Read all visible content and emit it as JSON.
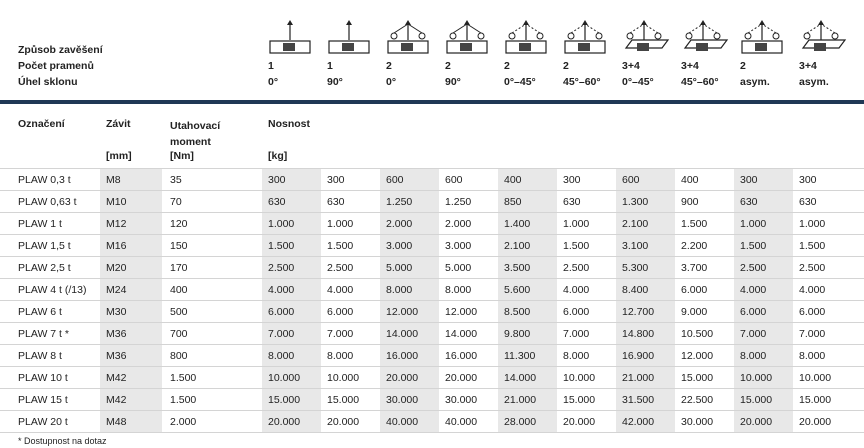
{
  "header": {
    "labels": [
      "Způsob zavěšení",
      "Počet pramenů",
      "Úhel sklonu"
    ],
    "columns": [
      {
        "count": "1",
        "angle": "0°"
      },
      {
        "count": "1",
        "angle": "90°"
      },
      {
        "count": "2",
        "angle": "0°"
      },
      {
        "count": "2",
        "angle": "90°"
      },
      {
        "count": "2",
        "angle": "0°–45°"
      },
      {
        "count": "2",
        "angle": "45°–60°"
      },
      {
        "count": "3+4",
        "angle": "0°–45°"
      },
      {
        "count": "3+4",
        "angle": "45°–60°"
      },
      {
        "count": "2",
        "angle": "asym."
      },
      {
        "count": "3+4",
        "angle": "asym."
      }
    ]
  },
  "table": {
    "headers": {
      "name": "Označení",
      "thread": "Závit",
      "torque": "Utahovací moment",
      "load": "Nosnost"
    },
    "units": {
      "thread": "[mm]",
      "torque": "[Nm]",
      "load": "[kg]"
    },
    "rows": [
      [
        "PLAW 0,3 t",
        "M8",
        "35",
        "300",
        "300",
        "600",
        "600",
        "400",
        "300",
        "600",
        "400",
        "300",
        "300"
      ],
      [
        "PLAW 0,63 t",
        "M10",
        "70",
        "630",
        "630",
        "1.250",
        "1.250",
        "850",
        "630",
        "1.300",
        "900",
        "630",
        "630"
      ],
      [
        "PLAW 1 t",
        "M12",
        "120",
        "1.000",
        "1.000",
        "2.000",
        "2.000",
        "1.400",
        "1.000",
        "2.100",
        "1.500",
        "1.000",
        "1.000"
      ],
      [
        "PLAW 1,5 t",
        "M16",
        "150",
        "1.500",
        "1.500",
        "3.000",
        "3.000",
        "2.100",
        "1.500",
        "3.100",
        "2.200",
        "1.500",
        "1.500"
      ],
      [
        "PLAW 2,5 t",
        "M20",
        "170",
        "2.500",
        "2.500",
        "5.000",
        "5.000",
        "3.500",
        "2.500",
        "5.300",
        "3.700",
        "2.500",
        "2.500"
      ],
      [
        "PLAW 4 t (/13)",
        "M24",
        "400",
        "4.000",
        "4.000",
        "8.000",
        "8.000",
        "5.600",
        "4.000",
        "8.400",
        "6.000",
        "4.000",
        "4.000"
      ],
      [
        "PLAW 6 t",
        "M30",
        "500",
        "6.000",
        "6.000",
        "12.000",
        "12.000",
        "8.500",
        "6.000",
        "12.700",
        "9.000",
        "6.000",
        "6.000"
      ],
      [
        "PLAW 7 t *",
        "M36",
        "700",
        "7.000",
        "7.000",
        "14.000",
        "14.000",
        "9.800",
        "7.000",
        "14.800",
        "10.500",
        "7.000",
        "7.000"
      ],
      [
        "PLAW 8 t",
        "M36",
        "800",
        "8.000",
        "8.000",
        "16.000",
        "16.000",
        "11.300",
        "8.000",
        "16.900",
        "12.000",
        "8.000",
        "8.000"
      ],
      [
        "PLAW 10 t",
        "M42",
        "1.500",
        "10.000",
        "10.000",
        "20.000",
        "20.000",
        "14.000",
        "10.000",
        "21.000",
        "15.000",
        "10.000",
        "10.000"
      ],
      [
        "PLAW 15 t",
        "M42",
        "1.500",
        "15.000",
        "15.000",
        "30.000",
        "30.000",
        "21.000",
        "15.000",
        "31.500",
        "22.500",
        "15.000",
        "15.000"
      ],
      [
        "PLAW 20 t",
        "M48",
        "2.000",
        "20.000",
        "20.000",
        "40.000",
        "40.000",
        "28.000",
        "20.000",
        "42.000",
        "30.000",
        "20.000",
        "20.000"
      ]
    ]
  },
  "footnote": "* Dostupnost na dotaz"
}
